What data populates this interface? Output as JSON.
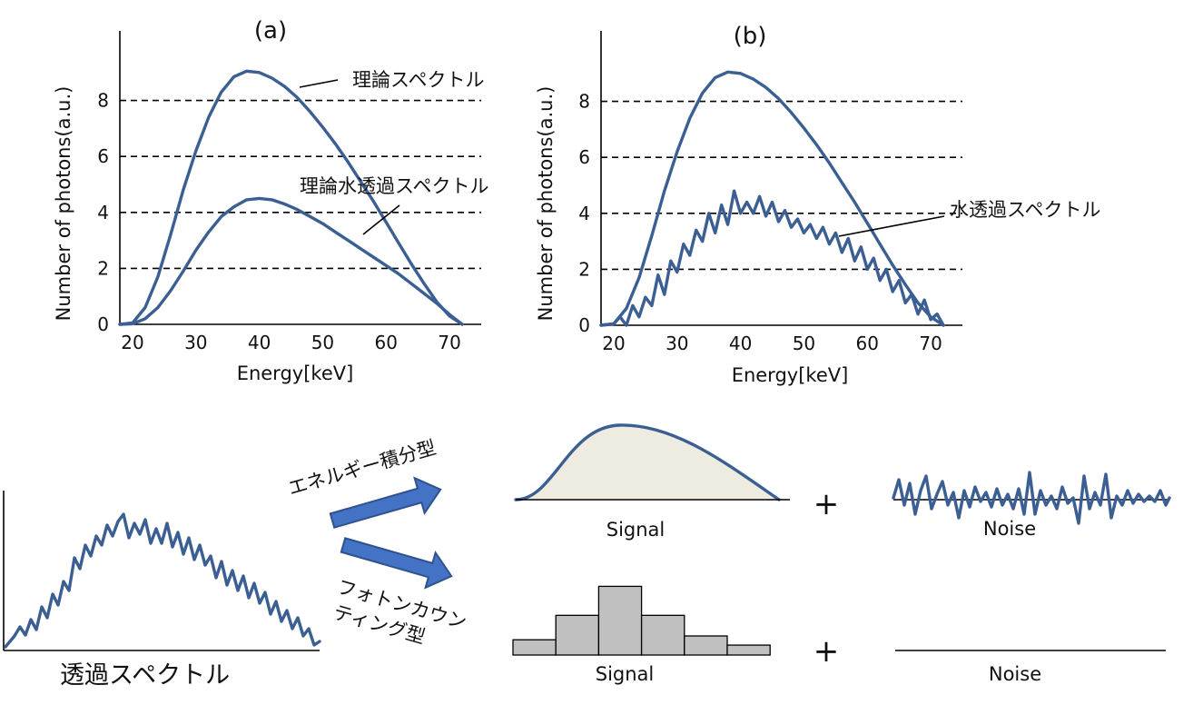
{
  "panel_a": {
    "label": "(a)",
    "ylabel": "Number of photons(a.u.)",
    "xlabel": "Energy[keV]",
    "xticks": [
      "20",
      "30",
      "40",
      "50",
      "60",
      "70"
    ],
    "yticks": [
      "0",
      "2",
      "4",
      "6",
      "8"
    ],
    "annotation_theory": "理論スペクトル",
    "annotation_water": "理論水透過スペクトル"
  },
  "panel_b": {
    "label": "(b)",
    "ylabel": "Number of photons(a.u.)",
    "xlabel": "Energy[keV]",
    "xticks": [
      "20",
      "30",
      "40",
      "50",
      "60",
      "70"
    ],
    "yticks": [
      "0",
      "2",
      "4",
      "6",
      "8"
    ],
    "annotation_water": "水透過スペクトル"
  },
  "bottom": {
    "transmitted_label": "透過スペクトル",
    "energy_integrating": "エネルギー積分型",
    "photon_counting_line1": "フォトンカウン",
    "photon_counting_line2": "ティング型",
    "signal_top": "Signal",
    "noise_top": "Noise",
    "signal_bottom": "Signal",
    "noise_bottom": "Noise",
    "plus": "+",
    "histogram_bins": [
      0.2,
      0.52,
      0.9,
      0.52,
      0.25,
      0.13
    ]
  },
  "colors": {
    "curve": "#3b5f93",
    "arrow": "#4472c4",
    "arrow_edge": "#2f528f",
    "signal_fill": "#eeece1",
    "histogram_fill": "#c0c0c0"
  },
  "chart_data": [
    {
      "type": "line",
      "title": "(a)",
      "xlabel": "Energy[keV]",
      "ylabel": "Number of photons(a.u.)",
      "xlim": [
        18,
        75
      ],
      "ylim": [
        0,
        10
      ],
      "grid": "dashed horizontal at 2, 4, 6, 8",
      "series": [
        {
          "name": "理論スペクトル",
          "x": [
            18,
            20,
            22,
            24,
            26,
            28,
            30,
            32,
            34,
            36,
            38,
            40,
            42,
            44,
            46,
            48,
            50,
            52,
            54,
            56,
            58,
            60,
            62,
            64,
            66,
            68,
            70,
            72
          ],
          "y": [
            0.0,
            0.05,
            0.6,
            1.7,
            3.2,
            4.8,
            6.2,
            7.4,
            8.3,
            8.85,
            9.05,
            9.0,
            8.8,
            8.5,
            8.1,
            7.6,
            7.05,
            6.45,
            5.8,
            5.1,
            4.4,
            3.65,
            2.9,
            2.15,
            1.45,
            0.8,
            0.3,
            0.0
          ]
        },
        {
          "name": "理論水透過スペクトル",
          "x": [
            18,
            20,
            22,
            24,
            26,
            28,
            30,
            32,
            34,
            36,
            38,
            40,
            42,
            44,
            46,
            48,
            50,
            52,
            54,
            56,
            58,
            60,
            62,
            64,
            66,
            68,
            70,
            72
          ],
          "y": [
            0.0,
            0.02,
            0.2,
            0.6,
            1.2,
            1.9,
            2.65,
            3.3,
            3.85,
            4.2,
            4.45,
            4.5,
            4.45,
            4.3,
            4.1,
            3.85,
            3.6,
            3.3,
            3.0,
            2.7,
            2.4,
            2.1,
            1.8,
            1.45,
            1.1,
            0.75,
            0.35,
            0.0
          ]
        }
      ]
    },
    {
      "type": "line",
      "title": "(b)",
      "xlabel": "Energy[keV]",
      "ylabel": "Number of photons(a.u.)",
      "xlim": [
        18,
        75
      ],
      "ylim": [
        0,
        10
      ],
      "grid": "dashed horizontal at 2, 4, 6, 8",
      "series": [
        {
          "name": "",
          "x": [
            18,
            20,
            22,
            24,
            26,
            28,
            30,
            32,
            34,
            36,
            38,
            40,
            42,
            44,
            46,
            48,
            50,
            52,
            54,
            56,
            58,
            60,
            62,
            64,
            66,
            68,
            70,
            72
          ],
          "y": [
            0.0,
            0.05,
            0.6,
            1.7,
            3.2,
            4.8,
            6.2,
            7.4,
            8.3,
            8.85,
            9.05,
            9.0,
            8.8,
            8.5,
            8.1,
            7.6,
            7.05,
            6.45,
            5.8,
            5.1,
            4.4,
            3.65,
            2.9,
            2.15,
            1.45,
            0.8,
            0.3,
            0.0
          ]
        },
        {
          "name": "水透過スペクトル",
          "x": [
            18,
            20,
            21,
            22,
            23,
            24,
            25,
            26,
            27,
            28,
            29,
            30,
            31,
            32,
            33,
            34,
            35,
            36,
            37,
            38,
            39,
            40,
            41,
            42,
            43,
            44,
            45,
            46,
            47,
            48,
            49,
            50,
            51,
            52,
            53,
            54,
            55,
            56,
            57,
            58,
            59,
            60,
            61,
            62,
            63,
            64,
            65,
            66,
            67,
            68,
            69,
            70,
            71,
            72
          ],
          "y": [
            0.0,
            0.05,
            0.3,
            0.0,
            0.7,
            0.3,
            1.0,
            0.7,
            1.8,
            1.1,
            2.3,
            1.9,
            2.9,
            2.5,
            3.4,
            3.0,
            4.0,
            3.3,
            4.3,
            3.6,
            4.8,
            4.0,
            4.4,
            4.0,
            4.6,
            3.9,
            4.4,
            3.7,
            4.1,
            3.5,
            3.8,
            3.3,
            3.6,
            3.1,
            3.5,
            2.9,
            3.3,
            2.6,
            3.1,
            2.3,
            2.8,
            2.0,
            2.4,
            1.6,
            2.0,
            1.2,
            1.6,
            0.8,
            1.1,
            0.4,
            0.9,
            0.2,
            0.4,
            0.0
          ]
        }
      ]
    }
  ]
}
